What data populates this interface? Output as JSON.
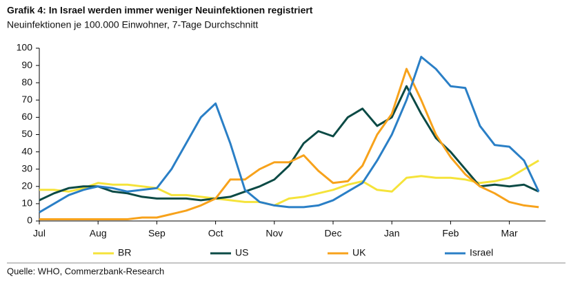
{
  "chart_data": {
    "type": "line",
    "title": "Grafik 4: In Israel werden immer weniger Neuinfektionen registriert",
    "subtitle": "Neuinfektionen je 100.000 Einwohner, 7-Tage Durchschnitt",
    "source": "Quelle: WHO, Commerzbank-Research",
    "categories": [
      "Jul",
      null,
      null,
      null,
      "Aug",
      null,
      null,
      null,
      "Sep",
      null,
      null,
      null,
      "Oct",
      null,
      null,
      null,
      "Nov",
      null,
      null,
      null,
      "Dec",
      null,
      null,
      null,
      "Jan",
      null,
      null,
      null,
      "Feb",
      null,
      null,
      null,
      "Mar",
      null,
      null
    ],
    "ylim": [
      0,
      100
    ],
    "yticks": [
      0,
      10,
      20,
      30,
      40,
      50,
      60,
      70,
      80,
      90,
      100
    ],
    "legend": "bottom",
    "series": [
      {
        "name": "BR",
        "color": "#f5e33a",
        "values": [
          18,
          18,
          17,
          19,
          22,
          21,
          21,
          20,
          19,
          15,
          15,
          14,
          13,
          12,
          11,
          11,
          9,
          13,
          14,
          16,
          18,
          21,
          23,
          18,
          17,
          25,
          26,
          25,
          25,
          24,
          22,
          23,
          25,
          30,
          35
        ]
      },
      {
        "name": "US",
        "color": "#0b4a45",
        "values": [
          12,
          16,
          19,
          20,
          20,
          17,
          16,
          14,
          13,
          13,
          13,
          12,
          13,
          14,
          17,
          20,
          24,
          32,
          45,
          52,
          49,
          60,
          65,
          55,
          60,
          78,
          62,
          48,
          40,
          30,
          20,
          21,
          20,
          21,
          17
        ]
      },
      {
        "name": "UK",
        "color": "#f7a21b",
        "values": [
          1,
          1,
          1,
          1,
          1,
          1,
          1,
          2,
          2,
          4,
          6,
          9,
          13,
          24,
          24,
          30,
          34,
          34,
          38,
          29,
          22,
          23,
          32,
          50,
          62,
          88,
          70,
          50,
          37,
          27,
          20,
          16,
          11,
          9,
          8
        ]
      },
      {
        "name": "Israel",
        "color": "#2a7fc6",
        "values": [
          5,
          10,
          15,
          18,
          20,
          19,
          17,
          18,
          19,
          30,
          45,
          60,
          68,
          45,
          18,
          11,
          9,
          8,
          8,
          9,
          12,
          17,
          22,
          35,
          50,
          70,
          95,
          88,
          78,
          77,
          55,
          44,
          43,
          35,
          17
        ]
      }
    ]
  }
}
